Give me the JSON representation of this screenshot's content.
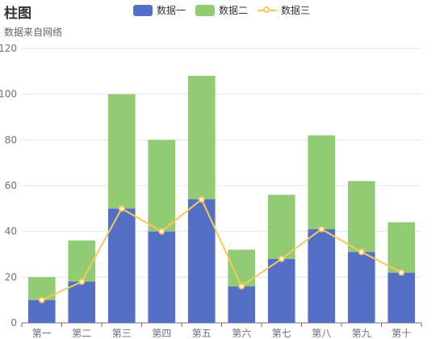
{
  "chart_data": {
    "type": "bar",
    "title": "柱图",
    "subtitle": "数据来自网络",
    "categories": [
      "第一",
      "第二",
      "第三",
      "第四",
      "第五",
      "第六",
      "第七",
      "第八",
      "第九",
      "第十"
    ],
    "series": [
      {
        "name": "数据一",
        "type": "bar",
        "stack": true,
        "color": "#5470c6",
        "values": [
          10,
          18,
          50,
          40,
          54,
          16,
          28,
          41,
          31,
          22
        ]
      },
      {
        "name": "数据二",
        "type": "bar",
        "stack": true,
        "color": "#91cc75",
        "values": [
          10,
          18,
          50,
          40,
          54,
          16,
          28,
          41,
          31,
          22
        ]
      },
      {
        "name": "数据三",
        "type": "line",
        "color": "#fac858",
        "values": [
          10,
          18,
          50,
          40,
          54,
          16,
          28,
          41,
          31,
          22
        ]
      }
    ],
    "ylim": [
      0,
      120
    ],
    "yticks": [
      0,
      20,
      40,
      60,
      80,
      100,
      120
    ],
    "grid": true,
    "legend_position": "top"
  }
}
